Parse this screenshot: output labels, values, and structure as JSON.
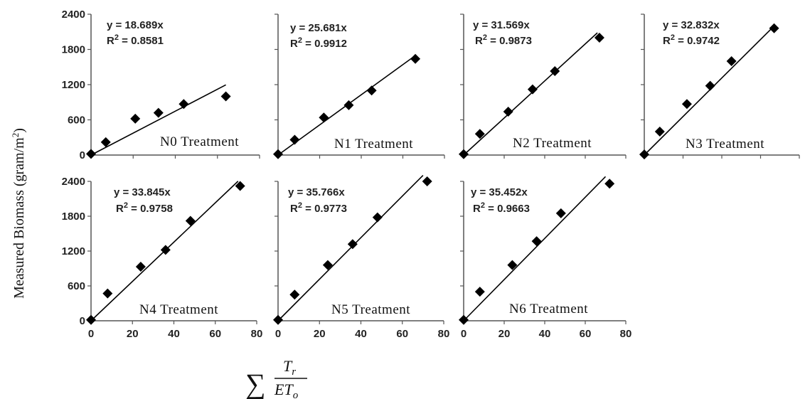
{
  "figure": {
    "ylabel": "Measured Biomass (gram/m",
    "ylabel_sup": "2",
    "ylabel_close": ")",
    "xlabel": {
      "sum": "∑",
      "numerator": "T",
      "numerator_sub": "r",
      "denominator": "ET",
      "denominator_sub": "o"
    }
  },
  "chart_data": [
    {
      "type": "scatter",
      "name": "N0 Treatment",
      "equation": "y = 18.689x",
      "r2_label": "R",
      "r2_sup": "2",
      "r2_value": " = 0.8581",
      "slope": 18.689,
      "fit_x_end": 64,
      "points": [
        [
          0,
          20
        ],
        [
          7,
          220
        ],
        [
          21,
          620
        ],
        [
          32,
          720
        ],
        [
          44,
          870
        ],
        [
          64,
          1000
        ]
      ],
      "xlim": [
        0,
        80
      ],
      "ylim": [
        0,
        2400
      ],
      "xticks": [
        0,
        20,
        40,
        60,
        80
      ],
      "yticks": [
        0,
        600,
        1200,
        1800,
        2400
      ],
      "show_yticklabels": true,
      "show_xticklabels": false,
      "grid": false
    },
    {
      "type": "scatter",
      "name": "N1 Treatment",
      "equation": "y = 25.681x",
      "r2_label": "R",
      "r2_sup": "2",
      "r2_value": " = 0.9912",
      "slope": 25.681,
      "fit_x_end": 65,
      "points": [
        [
          0,
          15
        ],
        [
          8,
          260
        ],
        [
          22,
          640
        ],
        [
          34,
          850
        ],
        [
          45,
          1100
        ],
        [
          66,
          1640
        ]
      ],
      "xlim": [
        0,
        80
      ],
      "ylim": [
        0,
        2400
      ],
      "xticks": [
        0,
        20,
        40,
        60,
        80
      ],
      "yticks": [
        0,
        600,
        1200,
        1800,
        2400
      ],
      "show_yticklabels": false,
      "show_xticklabels": false,
      "grid": false
    },
    {
      "type": "scatter",
      "name": "N2 Treatment",
      "equation": "y = 31.569x",
      "r2_label": "R",
      "r2_sup": "2",
      "r2_value": " = 0.9873",
      "slope": 31.569,
      "fit_x_end": 66,
      "points": [
        [
          0,
          15
        ],
        [
          8,
          360
        ],
        [
          22,
          740
        ],
        [
          34,
          1120
        ],
        [
          45,
          1430
        ],
        [
          67,
          2000
        ]
      ],
      "xlim": [
        0,
        80
      ],
      "ylim": [
        0,
        2400
      ],
      "xticks": [
        0,
        20,
        40,
        60,
        80
      ],
      "yticks": [
        0,
        600,
        1200,
        1800,
        2400
      ],
      "show_yticklabels": false,
      "show_xticklabels": false,
      "grid": false
    },
    {
      "type": "scatter",
      "name": "N3 Treatment",
      "equation": "y = 32.832x",
      "r2_label": "R",
      "r2_sup": "2",
      "r2_value": " = 0.9742",
      "slope": 32.832,
      "fit_x_end": 67,
      "points": [
        [
          0,
          10
        ],
        [
          8,
          400
        ],
        [
          22,
          870
        ],
        [
          34,
          1180
        ],
        [
          45,
          1600
        ],
        [
          67,
          2160
        ]
      ],
      "xlim": [
        0,
        80
      ],
      "ylim": [
        0,
        2400
      ],
      "xticks": [
        0,
        20,
        40,
        60,
        80
      ],
      "yticks": [
        0,
        600,
        1200,
        1800,
        2400
      ],
      "show_yticklabels": false,
      "show_xticklabels": false,
      "grid": false
    },
    {
      "type": "scatter",
      "name": "N4 Treatment",
      "equation": "y = 33.845x",
      "r2_label": "R",
      "r2_sup": "2",
      "r2_value": " = 0.9758",
      "slope": 33.845,
      "fit_x_end": 71,
      "points": [
        [
          0,
          15
        ],
        [
          8,
          470
        ],
        [
          24,
          930
        ],
        [
          36,
          1220
        ],
        [
          48,
          1720
        ],
        [
          72,
          2320
        ]
      ],
      "xlim": [
        0,
        80
      ],
      "ylim": [
        0,
        2400
      ],
      "xticks": [
        0,
        20,
        40,
        60,
        80
      ],
      "yticks": [
        0,
        600,
        1200,
        1800,
        2400
      ],
      "show_yticklabels": true,
      "show_xticklabels": true,
      "grid": false
    },
    {
      "type": "scatter",
      "name": "N5 Treatment",
      "equation": "y = 35.766x",
      "r2_label": "R",
      "r2_sup": "2",
      "r2_value": " = 0.9773",
      "slope": 35.766,
      "fit_x_end": 70,
      "points": [
        [
          0,
          15
        ],
        [
          8,
          450
        ],
        [
          24,
          960
        ],
        [
          36,
          1320
        ],
        [
          48,
          1780
        ],
        [
          72,
          2400
        ]
      ],
      "xlim": [
        0,
        80
      ],
      "ylim": [
        0,
        2400
      ],
      "xticks": [
        0,
        20,
        40,
        60,
        80
      ],
      "yticks": [
        0,
        600,
        1200,
        1800,
        2400
      ],
      "show_yticklabels": false,
      "show_xticklabels": true,
      "grid": false
    },
    {
      "type": "scatter",
      "name": "N6 Treatment",
      "equation": "y = 35.452x",
      "r2_label": "R",
      "r2_sup": "2",
      "r2_value": " = 0.9663",
      "slope": 35.452,
      "fit_x_end": 70,
      "points": [
        [
          0,
          15
        ],
        [
          8,
          500
        ],
        [
          24,
          960
        ],
        [
          36,
          1370
        ],
        [
          48,
          1850
        ],
        [
          72,
          2360
        ]
      ],
      "xlim": [
        0,
        80
      ],
      "ylim": [
        0,
        2400
      ],
      "xticks": [
        0,
        20,
        40,
        60,
        80
      ],
      "yticks": [
        0,
        600,
        1200,
        1800,
        2400
      ],
      "show_yticklabels": false,
      "show_xticklabels": true,
      "grid": false
    }
  ]
}
